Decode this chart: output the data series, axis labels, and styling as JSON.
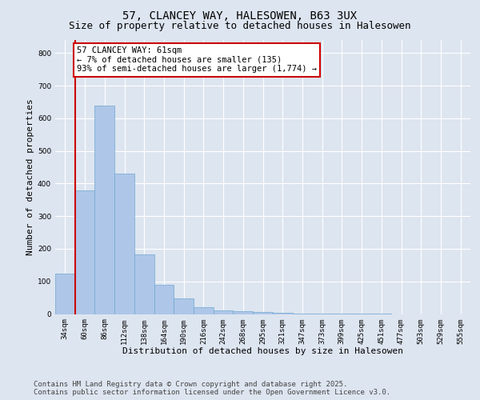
{
  "title_line1": "57, CLANCEY WAY, HALESOWEN, B63 3UX",
  "title_line2": "Size of property relative to detached houses in Halesowen",
  "xlabel": "Distribution of detached houses by size in Halesowen",
  "ylabel": "Number of detached properties",
  "bar_color": "#aec6e8",
  "bar_edge_color": "#6fa8d0",
  "categories": [
    "34sqm",
    "60sqm",
    "86sqm",
    "112sqm",
    "138sqm",
    "164sqm",
    "190sqm",
    "216sqm",
    "242sqm",
    "268sqm",
    "295sqm",
    "321sqm",
    "347sqm",
    "373sqm",
    "399sqm",
    "425sqm",
    "451sqm",
    "477sqm",
    "503sqm",
    "529sqm",
    "555sqm"
  ],
  "values": [
    125,
    380,
    640,
    430,
    182,
    90,
    47,
    20,
    12,
    8,
    5,
    3,
    2,
    2,
    1,
    1,
    1,
    0,
    0,
    0,
    0
  ],
  "ylim": [
    0,
    840
  ],
  "yticks": [
    0,
    100,
    200,
    300,
    400,
    500,
    600,
    700,
    800
  ],
  "annotation_text": "57 CLANCEY WAY: 61sqm\n← 7% of detached houses are smaller (135)\n93% of semi-detached houses are larger (1,774) →",
  "annotation_box_color": "#ffffff",
  "annotation_box_edge": "#cc0000",
  "vline_color": "#cc0000",
  "vline_x_bar_index": 1,
  "footer_line1": "Contains HM Land Registry data © Crown copyright and database right 2025.",
  "footer_line2": "Contains public sector information licensed under the Open Government Licence v3.0.",
  "background_color": "#dde5f0",
  "plot_bg_color": "#dde5f0",
  "grid_color": "#ffffff",
  "title_fontsize": 10,
  "subtitle_fontsize": 9,
  "axis_label_fontsize": 8,
  "tick_fontsize": 6.5,
  "footer_fontsize": 6.5,
  "annotation_fontsize": 7.5
}
